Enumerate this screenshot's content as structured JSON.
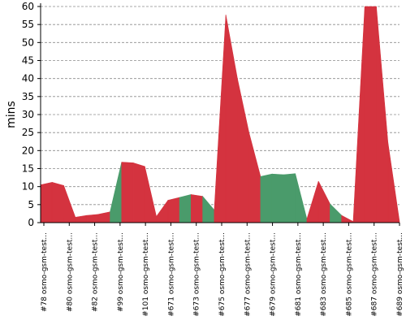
{
  "chart_data": {
    "type": "area",
    "ylabel": "mins",
    "xlabel": "",
    "ylim": [
      0,
      60
    ],
    "yticks": [
      0,
      5,
      10,
      15,
      20,
      25,
      30,
      35,
      40,
      45,
      50,
      55,
      60
    ],
    "grid": true,
    "x_tick_labels": [
      "#78 osmo-gsm-test...",
      "#80 osmo-gsm-test...",
      "#82 osmo-gsm-test...",
      "#99 osmo-gsm-test...",
      "#101 osmo-gsm-test...",
      "#671 osmo-gsm-test...",
      "#673 osmo-gsm-test...",
      "#675 osmo-gsm-test...",
      "#677 osmo-gsm-test...",
      "#679 osmo-gsm-test...",
      "#681 osmo-gsm-test...",
      "#683 osmo-gsm-test...",
      "#685 osmo-gsm-test...",
      "#687 osmo-gsm-test...",
      "#689 osmo-gsm-test..."
    ],
    "series": [
      {
        "values": [
          10.5,
          11.2,
          10.3,
          1.5,
          2,
          2.3,
          3,
          16.8,
          16.6,
          15.6,
          1.7,
          6.2,
          7,
          7.8,
          7.3,
          3.5,
          57.7,
          40,
          25,
          12.8,
          13.5,
          13.3,
          13.6,
          1,
          11.5,
          5.2,
          2,
          0.3,
          61,
          61,
          22.3,
          0.3
        ],
        "failed": [
          true,
          true,
          true,
          true,
          true,
          true,
          false,
          true,
          true,
          true,
          true,
          true,
          false,
          true,
          false,
          true,
          true,
          true,
          true,
          false,
          false,
          false,
          false,
          true,
          true,
          false,
          true,
          true,
          true,
          true,
          true,
          true
        ]
      }
    ],
    "colors": {
      "failed": "#d4333f",
      "success": "#4a9b6b"
    }
  }
}
